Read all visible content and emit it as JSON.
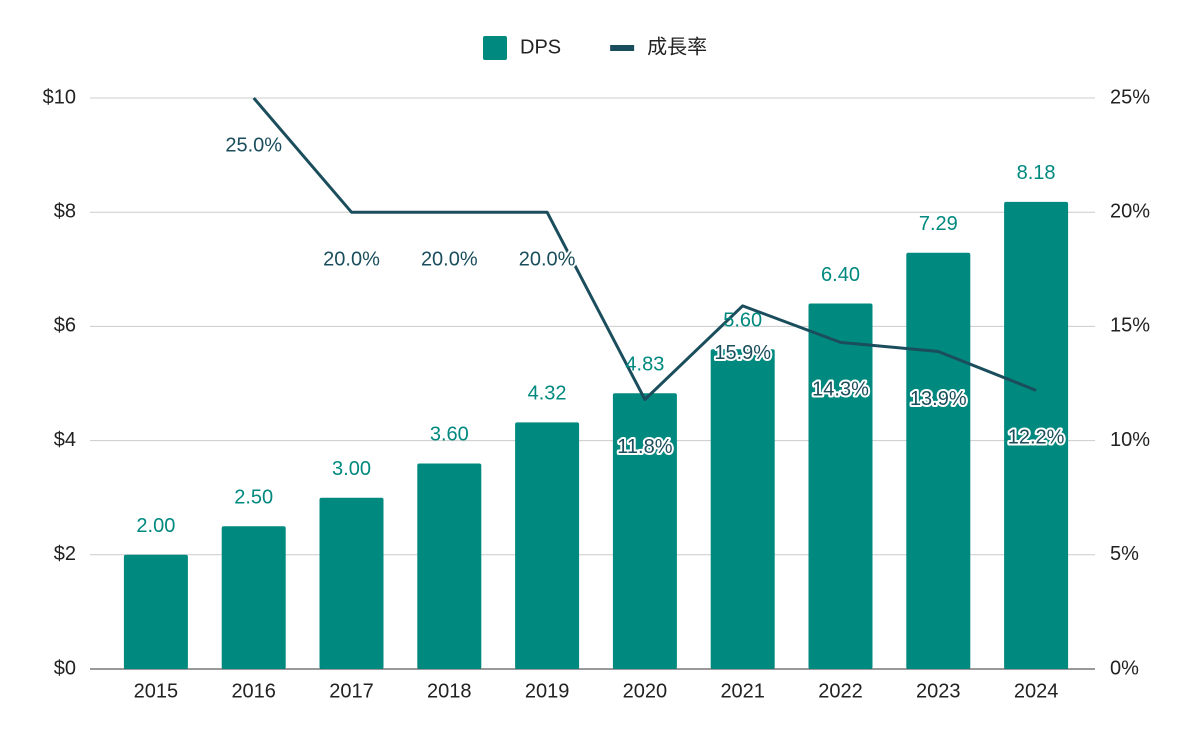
{
  "chart_data": {
    "type": "bar",
    "categories": [
      "2015",
      "2016",
      "2017",
      "2018",
      "2019",
      "2020",
      "2021",
      "2022",
      "2023",
      "2024"
    ],
    "series": [
      {
        "name": "DPS",
        "type": "bar",
        "color": "#00897f",
        "axis": "y",
        "values": [
          2.0,
          2.5,
          3.0,
          3.6,
          4.32,
          4.83,
          5.6,
          6.4,
          7.29,
          8.18
        ],
        "value_labels": [
          "2.00",
          "2.50",
          "3.00",
          "3.60",
          "4.32",
          "4.83",
          "5.60",
          "6.40",
          "7.29",
          "8.18"
        ]
      },
      {
        "name": "成長率",
        "type": "line",
        "color": "#1b4e5c",
        "axis": "y2",
        "values": [
          null,
          25.0,
          20.0,
          20.0,
          20.0,
          11.8,
          15.9,
          14.3,
          13.9,
          12.2
        ],
        "value_labels": [
          null,
          "25.0%",
          "20.0%",
          "20.0%",
          "20.0%",
          "11.8%",
          "15.9%",
          "14.3%",
          "13.9%",
          "12.2%"
        ]
      }
    ],
    "ylim": [
      0,
      10
    ],
    "yticks": [
      {
        "value": 0,
        "label": "$0"
      },
      {
        "value": 2,
        "label": "$2"
      },
      {
        "value": 4,
        "label": "$4"
      },
      {
        "value": 6,
        "label": "$6"
      },
      {
        "value": 8,
        "label": "$8"
      },
      {
        "value": 10,
        "label": "$10"
      }
    ],
    "y2lim": [
      0,
      25
    ],
    "y2ticks": [
      {
        "value": 0,
        "label": "0%"
      },
      {
        "value": 5,
        "label": "5%"
      },
      {
        "value": 10,
        "label": "10%"
      },
      {
        "value": 15,
        "label": "15%"
      },
      {
        "value": 20,
        "label": "20%"
      },
      {
        "value": 25,
        "label": "25%"
      }
    ],
    "grid": true,
    "legend": "top"
  }
}
